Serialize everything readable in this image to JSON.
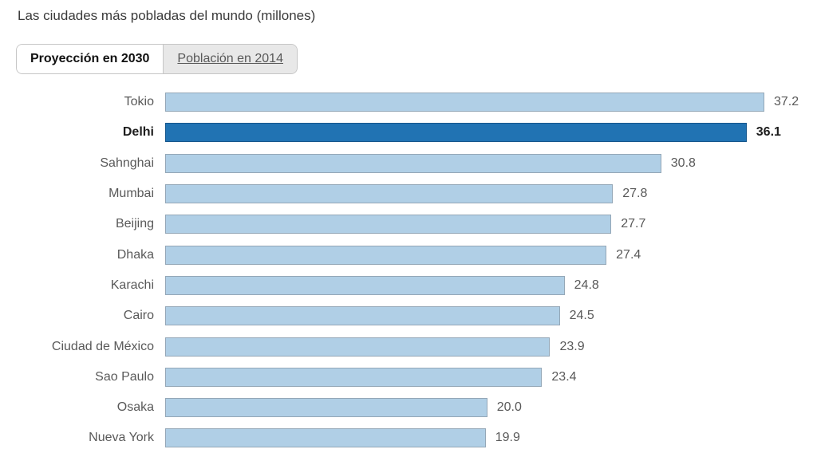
{
  "title": "Las ciudades más pobladas del mundo (millones)",
  "tabs": [
    {
      "label": "Proyección en 2030",
      "active": true
    },
    {
      "label": "Población en 2014",
      "active": false
    }
  ],
  "chart_data": {
    "type": "bar",
    "orientation": "horizontal",
    "title": "Las ciudades más pobladas del mundo (millones)",
    "xlabel": "",
    "ylabel": "",
    "xlim": [
      0,
      37.2
    ],
    "grid": false,
    "legend": "none",
    "value_decimals": 1,
    "categories": [
      "Tokio",
      "Delhi",
      "Sahnghai",
      "Mumbai",
      "Beijing",
      "Dhaka",
      "Karachi",
      "Cairo",
      "Ciudad de México",
      "Sao Paulo",
      "Osaka",
      "Nueva York"
    ],
    "values": [
      37.2,
      36.1,
      30.8,
      27.8,
      27.7,
      27.4,
      24.8,
      24.5,
      23.9,
      23.4,
      20.0,
      19.9
    ],
    "highlight_category": "Delhi",
    "highlight_index": 1,
    "colors": {
      "bar_fill": "#b0cfe6",
      "bar_border": "#94a7b7",
      "highlight_fill": "#2173b3",
      "highlight_border": "#16578c",
      "label_color": "#595959",
      "highlight_label_color": "#1d1d1d"
    }
  }
}
